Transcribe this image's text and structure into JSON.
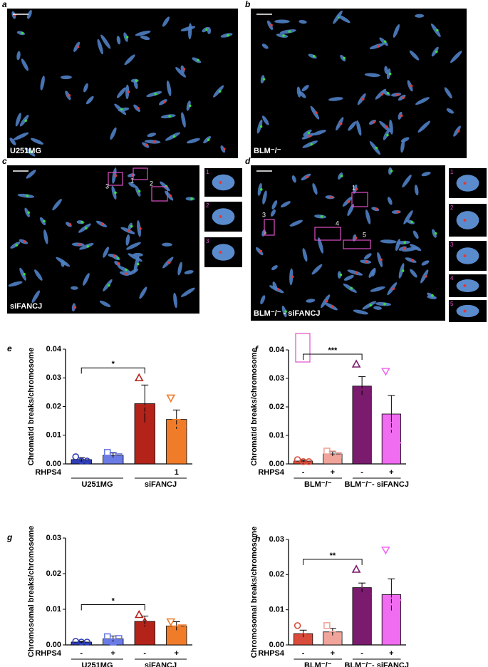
{
  "figure": {
    "panels": [
      {
        "letter": "a",
        "label": "U251MG"
      },
      {
        "letter": "b",
        "label": "BLM⁻/⁻"
      },
      {
        "letter": "c",
        "label": "siFANCJ",
        "boxes": [
          "3",
          "1",
          "2"
        ],
        "insets": [
          "1",
          "2",
          "3"
        ]
      },
      {
        "letter": "d",
        "label": "BLM⁻/⁻ - siFANCJ",
        "boxes": [
          "1",
          "3",
          "4",
          "5",
          "2"
        ],
        "insets": [
          "1",
          "2",
          "3",
          "4",
          "5"
        ]
      }
    ]
  },
  "chart_data": [
    {
      "type": "bar",
      "panel": "e",
      "ylabel": "Chromatid breaks/chromosome",
      "row_label": "RHPS4",
      "categories": [
        null,
        null,
        null,
        "1"
      ],
      "groups": [
        "U251MG",
        "siFANCJ"
      ],
      "values": [
        0.0015,
        0.003,
        0.021,
        0.0155
      ],
      "errors": [
        0.0007,
        0.0008,
        0.0065,
        0.0033
      ],
      "points": [
        [
          0.0025,
          0.001,
          0.001
        ],
        [
          0.004,
          0.003,
          0.0025
        ],
        [
          0.03,
          0.019,
          0.0125
        ],
        [
          0.023,
          0.0145,
          0.012
        ]
      ],
      "colors": [
        "#2f3db5",
        "#6b7be6",
        "#b3231a",
        "#f07c2a"
      ],
      "markers": [
        "circle",
        "square",
        "triangle-up",
        "triangle-down"
      ],
      "significance": "*",
      "ylim": [
        0,
        0.04
      ],
      "yticks": [
        {
          "value": 0,
          "label": "0.00"
        },
        {
          "value": 0.01,
          "label": "0.01"
        },
        {
          "value": 0.02,
          "label": "0.02"
        },
        {
          "value": 0.03,
          "label": "0.03"
        },
        {
          "value": 0.04,
          "label": "0.04"
        }
      ]
    },
    {
      "type": "bar",
      "panel": "f",
      "ylabel": "Chromatid breaks/chromosome",
      "row_label": "RHPS4",
      "categories": [
        "-",
        "+",
        "-",
        "+"
      ],
      "groups": [
        "BLM⁻/⁻",
        "BLM⁻/⁻- siFANCJ"
      ],
      "values": [
        0.001,
        0.0035,
        0.0273,
        0.0175
      ],
      "errors": [
        0.0003,
        0.0008,
        0.0033,
        0.0065
      ],
      "points": [
        [
          0.0015,
          0.0008,
          0.0008
        ],
        [
          0.0045,
          0.0035,
          0.003
        ],
        [
          0.035,
          0.025,
          0.025
        ],
        [
          0.0325,
          0.0135,
          0.0065
        ]
      ],
      "colors": [
        "#d94b3a",
        "#f0a49a",
        "#7b1b6e",
        "#f06cf0"
      ],
      "markers": [
        "circle",
        "square",
        "triangle-up",
        "triangle-down"
      ],
      "significance": "***",
      "ylim": [
        0,
        0.04
      ],
      "yticks": [
        {
          "value": 0,
          "label": "0.00"
        },
        {
          "value": 0.01,
          "label": "0.01"
        },
        {
          "value": 0.02,
          "label": "0.02"
        },
        {
          "value": 0.03,
          "label": "0.03"
        },
        {
          "value": 0.04,
          "label": "0.04"
        }
      ]
    },
    {
      "type": "bar",
      "panel": "g",
      "ylabel": "Chromosomal breaks/chromosome",
      "row_label": "RHPS4",
      "categories": [
        "-",
        "+",
        "-",
        "+"
      ],
      "groups": [
        "U251MG",
        "siFANCJ"
      ],
      "values": [
        0.0008,
        0.0017,
        0.0066,
        0.0053
      ],
      "errors": [
        0.0002,
        0.0008,
        0.0015,
        0.0012
      ],
      "points": [
        [
          0.001,
          0.0008,
          0.0008
        ],
        [
          0.0023,
          0.0008,
          0.0018
        ],
        [
          0.0085,
          0.0065,
          0.004
        ],
        [
          0.0065,
          0.0045,
          0.0048
        ]
      ],
      "colors": [
        "#2f3db5",
        "#6b7be6",
        "#b3231a",
        "#f07c2a"
      ],
      "markers": [
        "circle",
        "square",
        "triangle-up",
        "triangle-down"
      ],
      "significance": "*",
      "ylim": [
        0,
        0.03
      ],
      "yticks": [
        {
          "value": 0,
          "label": "0.00"
        },
        {
          "value": 0.01,
          "label": "0.01"
        },
        {
          "value": 0.02,
          "label": "0.02"
        },
        {
          "value": 0.03,
          "label": "0.03"
        }
      ]
    },
    {
      "type": "bar",
      "panel": "h",
      "ylabel": "Chromosomal breaks/chromosome",
      "row_label": "RHPS4",
      "categories": [
        "-",
        "+",
        "-",
        "+"
      ],
      "groups": [
        "BLM⁻/⁻",
        "BLM⁻/⁻- siFANCJ"
      ],
      "values": [
        0.0032,
        0.0037,
        0.0163,
        0.0143
      ],
      "errors": [
        0.001,
        0.001,
        0.0013,
        0.0045
      ],
      "points": [
        [
          0.0055,
          0.0025,
          0.0018
        ],
        [
          0.0055,
          0.003,
          0.0025
        ],
        [
          0.0215,
          0.0155,
          0.015
        ],
        [
          0.027,
          0.0125,
          0.012
        ]
      ],
      "colors": [
        "#d94b3a",
        "#f0a49a",
        "#7b1b6e",
        "#f06cf0"
      ],
      "markers": [
        "circle",
        "square",
        "triangle-up",
        "triangle-down"
      ],
      "significance": "**",
      "ylim": [
        0,
        0.03
      ],
      "yticks": [
        {
          "value": 0,
          "label": "0.00"
        },
        {
          "value": 0.01,
          "label": "0.01"
        },
        {
          "value": 0.02,
          "label": "0.02"
        },
        {
          "value": 0.03,
          "label": "0.03"
        }
      ]
    }
  ]
}
